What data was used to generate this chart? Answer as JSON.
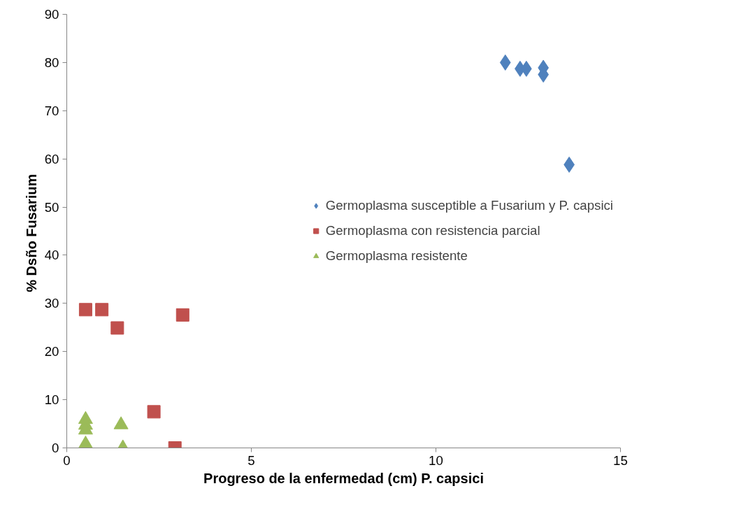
{
  "chart_data": {
    "type": "scatter",
    "xlabel": "Progreso de la enfermedad (cm) P. capsici",
    "ylabel": "% Dsño  Fusarium",
    "xlim": [
      0,
      15
    ],
    "ylim": [
      0,
      90
    ],
    "xticks": [
      0,
      5,
      10,
      15
    ],
    "yticks": [
      0,
      10,
      20,
      30,
      40,
      50,
      60,
      70,
      80,
      90
    ],
    "grid": false,
    "legend": "right",
    "series": [
      {
        "name": "Germoplasma susceptible a Fusarium y P. capsici",
        "color": "#4f81bd",
        "marker": "diamond",
        "x": [
          11.88,
          12.28,
          12.45,
          12.91,
          12.91,
          13.61
        ],
        "values": [
          80.0,
          78.7,
          78.7,
          78.9,
          77.5,
          58.8
        ]
      },
      {
        "name": "Germoplasma con resistencia parcial",
        "color": "#c0504d",
        "marker": "square",
        "x": [
          0.51,
          0.95,
          1.37,
          3.14,
          2.36,
          2.93
        ],
        "values": [
          28.7,
          28.7,
          24.9,
          27.6,
          7.5,
          0
        ]
      },
      {
        "name": "Germoplasma resistente",
        "color": "#9bbb59",
        "marker": "triangle",
        "x": [
          0.51,
          0.51,
          0.51,
          0.51,
          1.47,
          1.52
        ],
        "values": [
          5.9,
          4.7,
          3.7,
          0.8,
          4.8,
          0
        ]
      }
    ]
  }
}
